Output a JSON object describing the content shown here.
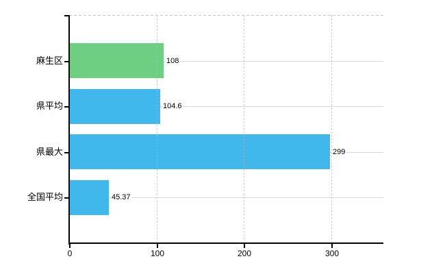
{
  "chart_data": {
    "type": "bar",
    "orientation": "horizontal",
    "categories": [
      "麻生区",
      "県平均",
      "県最大",
      "全国平均"
    ],
    "values": [
      108,
      104.6,
      299,
      45.37
    ],
    "value_labels": [
      "108",
      "104.6",
      "299",
      "45.37"
    ],
    "series": [
      {
        "name": "",
        "values": [
          108,
          104.6,
          299,
          45.37
        ]
      }
    ],
    "bar_colors": [
      "#6ecf82",
      "#41b8ec",
      "#41b8ec",
      "#41b8ec"
    ],
    "x_ticks": [
      0,
      100,
      200,
      300
    ],
    "x_tick_labels": [
      "0",
      "100",
      "200",
      "300"
    ],
    "xlim": [
      0,
      360
    ],
    "grid": true,
    "legend": "none",
    "background_color": "#ffffff",
    "axis_color": "#000000",
    "horizontal_grid_color": "#d5dcd5",
    "vertical_grid_color": "#b9b9b9",
    "text_color": "#000000"
  }
}
